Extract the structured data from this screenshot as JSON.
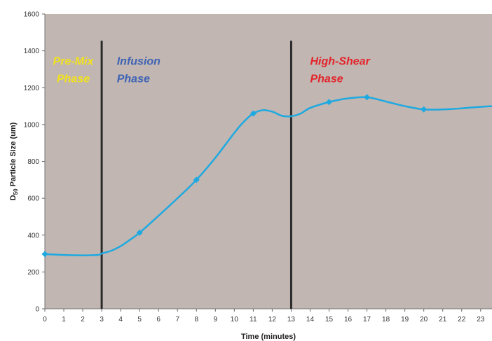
{
  "chart_data": {
    "type": "line",
    "title": "",
    "xlabel": "Time (minutes)",
    "ylabel_main": "D",
    "ylabel_sub": "50",
    "ylabel_rest": " Particle Size (um)",
    "xlim": [
      0,
      23.6
    ],
    "ylim": [
      0,
      1600
    ],
    "x_ticks": [
      0,
      1,
      2,
      3,
      4,
      5,
      6,
      7,
      8,
      9,
      10,
      11,
      12,
      13,
      14,
      15,
      16,
      17,
      18,
      19,
      20,
      21,
      22,
      23
    ],
    "y_ticks": [
      0,
      200,
      400,
      600,
      800,
      1000,
      1200,
      1400,
      1600
    ],
    "grid": false,
    "plot_background": "#c1b6b1",
    "line_color": "#1ea9e1",
    "series": [
      {
        "curve_x": [
          0,
          1,
          2,
          2.8,
          3,
          3.5,
          4,
          4.5,
          5,
          6,
          7,
          8,
          9,
          10,
          10.5,
          11,
          11.5,
          12,
          12.5,
          13,
          13.5,
          14,
          15,
          16,
          17,
          18,
          19,
          20,
          21,
          22,
          23,
          23.6
        ],
        "curve_y": [
          297,
          292,
          290,
          292,
          300,
          315,
          340,
          375,
          413,
          505,
          600,
          700,
          820,
          955,
          1015,
          1060,
          1078,
          1070,
          1048,
          1045,
          1060,
          1090,
          1122,
          1142,
          1148,
          1125,
          1100,
          1082,
          1082,
          1088,
          1096,
          1100
        ],
        "markers_x": [
          0,
          5,
          8,
          11,
          15,
          17,
          20
        ],
        "markers_y": [
          297,
          413,
          700,
          1060,
          1122,
          1148,
          1082
        ]
      }
    ],
    "phase_dividers": [
      {
        "x": 3,
        "y_top": 1455
      },
      {
        "x": 13,
        "y_top": 1455
      }
    ],
    "phases": [
      {
        "line1": "Pre-Mix",
        "line2": "Phase",
        "color": "#f2e21b",
        "x": 1.5,
        "y1": 1325,
        "y2": 1230,
        "anchor": "middle"
      },
      {
        "line1": "Infusion",
        "line2": "Phase",
        "color": "#3f63b5",
        "x": 3.8,
        "y1": 1325,
        "y2": 1230,
        "anchor": "start"
      },
      {
        "line1": "High-Shear",
        "line2": "Phase",
        "color": "#e3242b",
        "x": 14.0,
        "y1": 1325,
        "y2": 1230,
        "anchor": "start"
      }
    ]
  }
}
